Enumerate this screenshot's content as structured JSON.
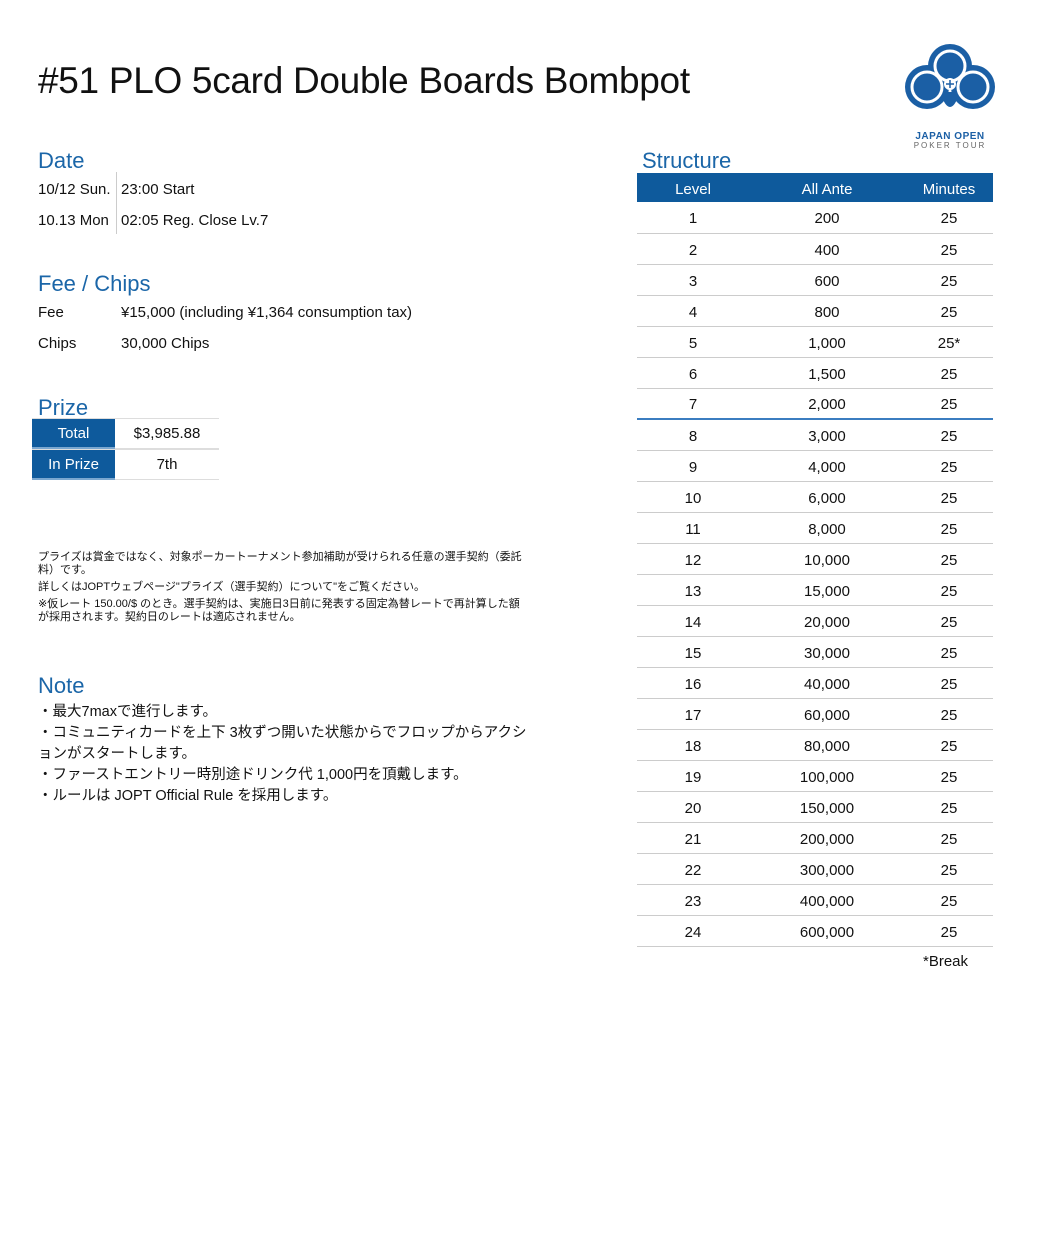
{
  "title": "#51 PLO 5card Double Boards Bombpot",
  "logo": {
    "line1": "JAPAN OPEN",
    "line2": "POKER TOUR",
    "color": "#1b5fa5"
  },
  "date": {
    "heading": "Date",
    "rows": [
      {
        "day": "10/12  Sun.",
        "info": "23:00 Start"
      },
      {
        "day": "10.13 Mon",
        "info": "02:05 Reg. Close Lv.7"
      }
    ]
  },
  "fee": {
    "heading": "Fee / Chips",
    "rows": [
      {
        "label": "Fee",
        "value": "¥15,000 (including ¥1,364 consumption tax)"
      },
      {
        "label": "Chips",
        "value": "30,000 Chips"
      }
    ]
  },
  "prize": {
    "heading": "Prize",
    "rows": [
      {
        "label": "Total",
        "value": "$3,985.88"
      },
      {
        "label": "In Prize",
        "value": "7th"
      }
    ]
  },
  "disclaimer": [
    "プライズは賞金ではなく、対象ポーカートーナメント参加補助が受けられる任意の選手契約（委託料）です。",
    "詳しくはJOPTウェブページ\"プライズ（選手契約）について\"をご覧ください。",
    "※仮レート 150.00/$ のとき。選手契約は、実施日3日前に発表する固定為替レートで再計算した額が採用されます。契約日のレートは適応されません。"
  ],
  "note": {
    "heading": "Note",
    "items": [
      "・最大7maxで進行します。",
      "・コミュニティカードを上下 3枚ずつ開いた状態からでフロップからアクションがスタートします。",
      "・ファーストエントリー時別途ドリンク代  1,000円を頂戴します。",
      "・ルールは JOPT Official Rule を採用します。"
    ]
  },
  "structure": {
    "heading": "Structure",
    "columns": [
      "Level",
      "All Ante",
      "Minutes"
    ],
    "rows": [
      [
        "1",
        "200",
        "25"
      ],
      [
        "2",
        "400",
        "25"
      ],
      [
        "3",
        "600",
        "25"
      ],
      [
        "4",
        "800",
        "25"
      ],
      [
        "5",
        "1,000",
        "25*"
      ],
      [
        "6",
        "1,500",
        "25"
      ],
      [
        "7",
        "2,000",
        "25"
      ],
      [
        "8",
        "3,000",
        "25"
      ],
      [
        "9",
        "4,000",
        "25"
      ],
      [
        "10",
        "6,000",
        "25"
      ],
      [
        "11",
        "8,000",
        "25"
      ],
      [
        "12",
        "10,000",
        "25"
      ],
      [
        "13",
        "15,000",
        "25"
      ],
      [
        "14",
        "20,000",
        "25"
      ],
      [
        "15",
        "30,000",
        "25"
      ],
      [
        "16",
        "40,000",
        "25"
      ],
      [
        "17",
        "60,000",
        "25"
      ],
      [
        "18",
        "80,000",
        "25"
      ],
      [
        "19",
        "100,000",
        "25"
      ],
      [
        "20",
        "150,000",
        "25"
      ],
      [
        "21",
        "200,000",
        "25"
      ],
      [
        "22",
        "300,000",
        "25"
      ],
      [
        "23",
        "400,000",
        "25"
      ],
      [
        "24",
        "600,000",
        "25"
      ]
    ],
    "footnote": "*Break"
  },
  "colors": {
    "accent": "#1b66a8",
    "header_bg": "#0e5a9c"
  }
}
